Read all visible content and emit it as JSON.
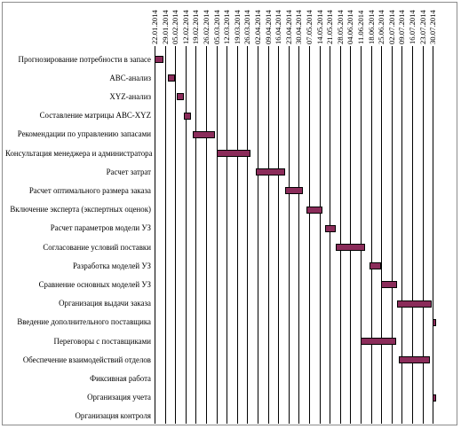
{
  "chart_data": {
    "type": "gantt",
    "title": "",
    "dates": [
      "22.01.2014",
      "29.01.2014",
      "05.02.2014",
      "12.02.2014",
      "19.02.2014",
      "26.02.2014",
      "05.03.2014",
      "12.03.2014",
      "19.03.2014",
      "26.03.2014",
      "02.04.2014",
      "09.04.2014",
      "16.04.2014",
      "23.04.2014",
      "30.04.2014",
      "07.05.2014",
      "14.05.2014",
      "21.05.2014",
      "28.05.2014",
      "04.06.2014",
      "11.06.2014",
      "18.06.2014",
      "25.06.2014",
      "02.07.2014",
      "09.07.2014",
      "16.07.2014",
      "23.07.2014",
      "30.07.2014"
    ],
    "tasks": [
      {
        "name": "Прогнозирование потребности в запасе",
        "start": "2014-01-22",
        "end": "2014-01-28"
      },
      {
        "name": "ABC-анализ",
        "start": "2014-01-31",
        "end": "2014-02-05"
      },
      {
        "name": "XYZ-анализ",
        "start": "2014-02-06",
        "end": "2014-02-11"
      },
      {
        "name": "Составление матрицы ABC-XYZ",
        "start": "2014-02-11",
        "end": "2014-02-16"
      },
      {
        "name": "Рекомендации по управлению запасами",
        "start": "2014-02-17",
        "end": "2014-03-04"
      },
      {
        "name": "Консультация менеджера и администратора",
        "start": "2014-03-05",
        "end": "2014-03-28"
      },
      {
        "name": "Расчет затрат",
        "start": "2014-04-01",
        "end": "2014-04-21"
      },
      {
        "name": "Расчет оптимального размера заказа",
        "start": "2014-04-21",
        "end": "2014-05-03"
      },
      {
        "name": "Включение эксперта (экспертных оценок)",
        "start": "2014-05-05",
        "end": "2014-05-16"
      },
      {
        "name": "Расчет параметров модели УЗ",
        "start": "2014-05-18",
        "end": "2014-05-25"
      },
      {
        "name": "Согласование условий поставки",
        "start": "2014-05-25",
        "end": "2014-06-14"
      },
      {
        "name": "Разработка моделей УЗ",
        "start": "2014-06-17",
        "end": "2014-06-25"
      },
      {
        "name": "Сравнение основных моделей УЗ",
        "start": "2014-06-25",
        "end": "2014-07-06"
      },
      {
        "name": "Организация выдачи заказа",
        "start": "2014-07-06",
        "end": "2014-07-29"
      },
      {
        "name": "Введение дополнительного поставщика",
        "start": "2014-07-30",
        "end": "2014-08-01"
      },
      {
        "name": "Переговоры с поставщиками",
        "start": "2014-06-11",
        "end": "2014-07-05"
      },
      {
        "name": "Обеспечение взаимодействий отделов",
        "start": "2014-07-07",
        "end": "2014-07-28"
      },
      {
        "name": "Фиксивная работа",
        "start": null,
        "end": null
      },
      {
        "name": "Организация учета",
        "start": "2014-07-30",
        "end": "2014-08-01"
      },
      {
        "name": "Организация контроля",
        "start": null,
        "end": null
      }
    ],
    "colors": {
      "bar": "#8b2c5a"
    },
    "grid": true
  }
}
